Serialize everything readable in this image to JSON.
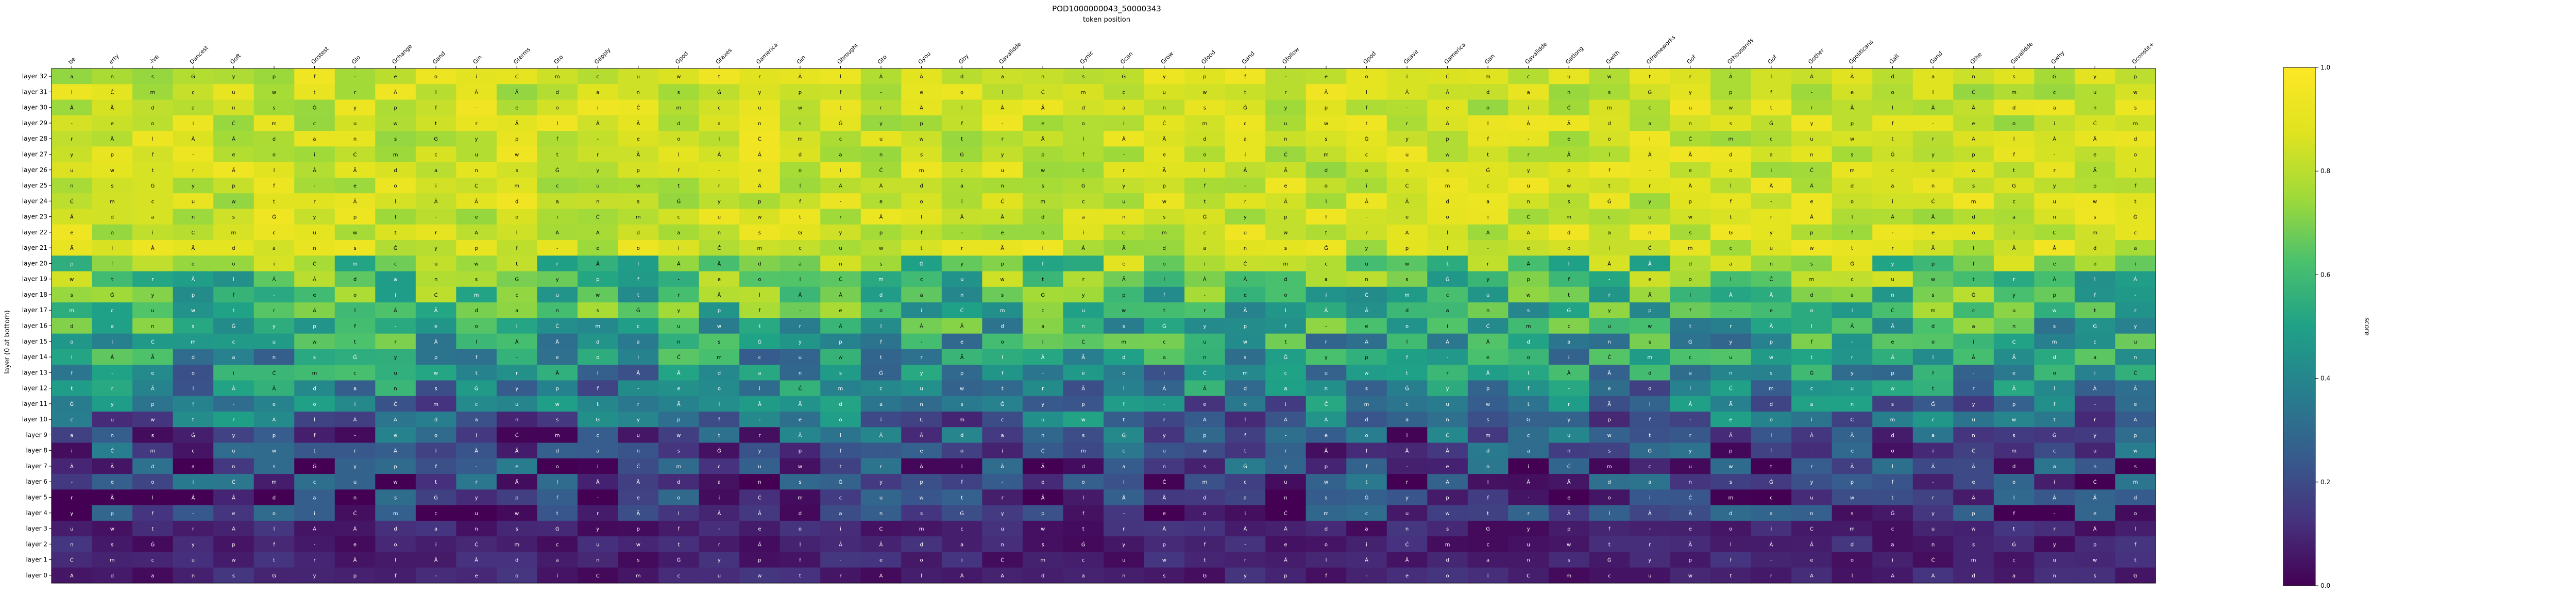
{
  "chart_data": {
    "type": "heatmap",
    "title": "POD1000000043_50000343",
    "subtitle": "token position",
    "ylabel": "layer (0 at bottom)",
    "colorbar": {
      "label": "score",
      "range": [
        0.0,
        1.0
      ],
      "ticks": [
        "0.0",
        "0.2",
        "0.4",
        "0.6",
        "0.8",
        "1.0"
      ],
      "colormap": "viridis"
    },
    "x_tokens": [
      "be",
      "erty",
      "-ive",
      "Dancest",
      "Goft",
      "",
      "Gostest",
      "Glo",
      "Gchange",
      "Gand",
      "Gin",
      "Gterms",
      "Gto",
      "Gapply",
      "",
      "Gpod",
      "Gtaxes",
      "Gamerica",
      "Gin",
      "Gbrought",
      "Gto",
      "Gyou",
      "Gby",
      "Gavalidde",
      "",
      "Gynic",
      "Gcan",
      "Grow",
      "Gfood",
      "Gand",
      "Gfollow",
      "",
      "Gpod",
      "Gsave",
      "Gamerica",
      "Gan",
      "Gavalidde",
      "Gatlong",
      "Gwith",
      "Gframeworks",
      "Gof",
      "Gthousands",
      "Gof",
      "Gother",
      "Gpoliticans",
      "Gall",
      "Gand",
      "Gthe",
      "Gavalidde",
      "Gwhy",
      "",
      "Gconstit+"
    ],
    "y_layers": [
      "layer 32",
      "layer 31",
      "layer 30",
      "layer 29",
      "layer 28",
      "layer 27",
      "layer 26",
      "layer 25",
      "layer 24",
      "layer 23",
      "layer 22",
      "layer 21",
      "layer 20",
      "layer 19",
      "layer 18",
      "layer 17",
      "layer 16",
      "layer 15",
      "layer 14",
      "layer 13",
      "layer 12",
      "layer 11",
      "layer 10",
      "layer 9",
      "layer 8",
      "layer 7",
      "layer 6",
      "layer 5",
      "layer 4",
      "layer 3",
      "layer 2",
      "layer 1",
      "layer 0"
    ],
    "cell_glyphs": [
      "a",
      "e",
      "t",
      "n",
      "o",
      "r",
      "s",
      "i",
      "Ä",
      "Ġ",
      "Ċ",
      "l",
      "y",
      "m",
      "Â",
      "p",
      "c",
      "Ã",
      "f",
      "u",
      "d",
      "-",
      "w"
    ],
    "notes": "Cell values estimated: layers 21-32 mostly high (~0.8-1.0), middle layers mixed (0.3-0.8), layers 0-9 low (~0.0-0.3)."
  }
}
